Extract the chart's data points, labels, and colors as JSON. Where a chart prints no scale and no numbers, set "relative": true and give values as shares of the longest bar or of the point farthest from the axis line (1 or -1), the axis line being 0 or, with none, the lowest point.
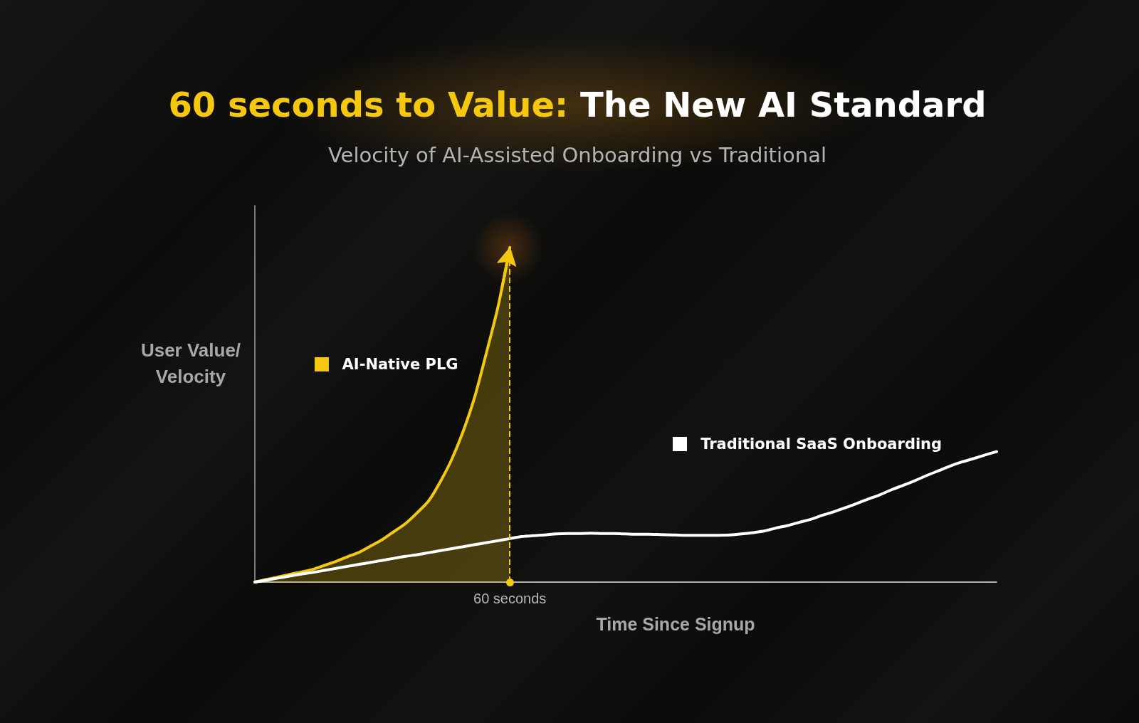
{
  "chart_data": {
    "type": "line",
    "title": "60 seconds to Value: The New AI Standard",
    "subtitle": "Velocity of AI-Assisted Onboarding vs Traditional",
    "xlabel": "Time Since Signup",
    "ylabel": "User Value/ Velocity",
    "relative": true,
    "marker": "none",
    "legend": "center",
    "categories": [
      null,
      null,
      null,
      null,
      null,
      null,
      null,
      null,
      null,
      null,
      null,
      null,
      null,
      null,
      null,
      null,
      null,
      null,
      null,
      null,
      null,
      null,
      null,
      null,
      null,
      null,
      null,
      null,
      null,
      null,
      null,
      null,
      null,
      null,
      null,
      null,
      null,
      null,
      null,
      null,
      null,
      null,
      null,
      null,
      null,
      null,
      null,
      null,
      null,
      null,
      null,
      null,
      null,
      null,
      null,
      null,
      null,
      null,
      null,
      null,
      null,
      null,
      null,
      null,
      null
    ],
    "series": [
      {
        "name": "AI-Native PLG",
        "type": "area",
        "color": "#f2c811",
        "values": [
          0,
          0.008,
          0.015,
          0.023,
          0.03,
          0.038,
          0.05,
          0.062,
          0.076,
          0.089,
          0.108,
          0.127,
          0.151,
          0.175,
          0.207,
          0.243,
          0.3,
          0.368,
          0.453,
          0.557,
          0.688,
          0.826,
          1,
          null,
          null,
          null,
          null,
          null,
          null,
          null,
          null,
          null,
          null,
          null,
          null,
          null,
          null,
          null,
          null,
          null,
          null,
          null,
          null,
          null,
          null,
          null,
          null,
          null,
          null,
          null,
          null,
          null,
          null,
          null,
          null,
          null,
          null,
          null,
          null,
          null,
          null,
          null,
          null,
          null,
          null
        ]
      },
      {
        "name": "Traditional SaaS Onboarding",
        "type": "line",
        "color": "#ffffff",
        "values": [
          0,
          0.006,
          0.012,
          0.018,
          0.024,
          0.029,
          0.035,
          0.041,
          0.047,
          0.053,
          0.059,
          0.065,
          0.071,
          0.077,
          0.082,
          0.088,
          0.094,
          0.1,
          0.106,
          0.112,
          0.118,
          0.124,
          0.13,
          0.136,
          0.139,
          0.141,
          0.144,
          0.145,
          0.145,
          0.146,
          0.145,
          0.145,
          0.144,
          0.143,
          0.143,
          0.142,
          0.141,
          0.14,
          0.14,
          0.14,
          0.14,
          0.141,
          0.144,
          0.148,
          0.153,
          0.162,
          0.169,
          0.179,
          0.188,
          0.2,
          0.211,
          0.223,
          0.236,
          0.249,
          0.262,
          0.277,
          0.29,
          0.304,
          0.319,
          0.333,
          0.347,
          0.359,
          0.369,
          0.38,
          0.39
        ]
      }
    ],
    "ref_lines": [
      {
        "axis": "x",
        "label": "60 seconds",
        "color": "#f2c811",
        "line_style": "dashed"
      }
    ]
  }
}
